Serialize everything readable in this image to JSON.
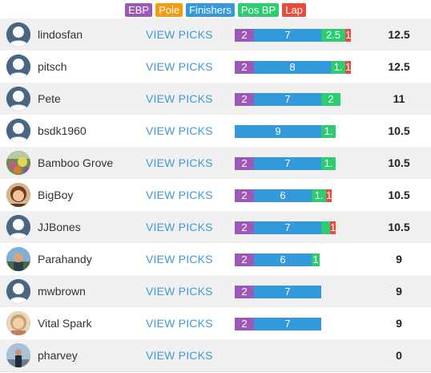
{
  "legend": [
    {
      "label": "EBP",
      "color": "#9b59b6"
    },
    {
      "label": "Pole",
      "color": "#f39c12"
    },
    {
      "label": "Finishers",
      "color": "#3498db"
    },
    {
      "label": "Pos BP",
      "color": "#2ecc71"
    },
    {
      "label": "Lap",
      "color": "#e74c3c"
    }
  ],
  "view_picks_label": "VIEW PICKS",
  "rows": [
    {
      "name": "lindosfan",
      "avatar": "default",
      "total": "12.5",
      "segments": [
        {
          "type": "ebp",
          "label": "2",
          "value": 2
        },
        {
          "type": "fin",
          "label": "7",
          "value": 7
        },
        {
          "type": "posbp",
          "label": "2.5",
          "value": 2.5
        },
        {
          "type": "lap",
          "label": "1",
          "value": 0.6
        }
      ]
    },
    {
      "name": "pitsch",
      "avatar": "default",
      "total": "12.5",
      "segments": [
        {
          "type": "ebp",
          "label": "2",
          "value": 2
        },
        {
          "type": "fin",
          "label": "8",
          "value": 8
        },
        {
          "type": "posbp",
          "label": "1.",
          "value": 1.5
        },
        {
          "type": "lap",
          "label": "1",
          "value": 0.6
        }
      ]
    },
    {
      "name": "Pete",
      "avatar": "default",
      "total": "11",
      "segments": [
        {
          "type": "ebp",
          "label": "2",
          "value": 2
        },
        {
          "type": "fin",
          "label": "7",
          "value": 7
        },
        {
          "type": "posbp",
          "label": "2",
          "value": 2
        }
      ]
    },
    {
      "name": "bsdk1960",
      "avatar": "default",
      "total": "10.5",
      "segments": [
        {
          "type": "fin",
          "label": "9",
          "value": 9
        },
        {
          "type": "posbp",
          "label": "1.",
          "value": 1.5
        }
      ]
    },
    {
      "name": "Bamboo Grove",
      "avatar": "photo-garden",
      "total": "10.5",
      "segments": [
        {
          "type": "ebp",
          "label": "2",
          "value": 2
        },
        {
          "type": "fin",
          "label": "7",
          "value": 7
        },
        {
          "type": "posbp",
          "label": "1.",
          "value": 1.5
        }
      ]
    },
    {
      "name": "BigBoy",
      "avatar": "photo-face",
      "total": "10.5",
      "segments": [
        {
          "type": "ebp",
          "label": "2",
          "value": 2
        },
        {
          "type": "fin",
          "label": "6",
          "value": 6
        },
        {
          "type": "posbp",
          "label": "1.",
          "value": 1.5
        },
        {
          "type": "lap",
          "label": "1",
          "value": 0.6
        }
      ]
    },
    {
      "name": "JJBones",
      "avatar": "default",
      "total": "10.5",
      "segments": [
        {
          "type": "ebp",
          "label": "2",
          "value": 2
        },
        {
          "type": "fin",
          "label": "7",
          "value": 7
        },
        {
          "type": "posbp",
          "label": "",
          "value": 0.9
        },
        {
          "type": "lap",
          "label": "1",
          "value": 0.6
        }
      ]
    },
    {
      "name": "Parahandy",
      "avatar": "photo-man",
      "total": "9",
      "segments": [
        {
          "type": "ebp",
          "label": "2",
          "value": 2
        },
        {
          "type": "fin",
          "label": "6",
          "value": 6
        },
        {
          "type": "posbp",
          "label": "1",
          "value": 0.8
        }
      ]
    },
    {
      "name": "mwbrown",
      "avatar": "default",
      "total": "9",
      "segments": [
        {
          "type": "ebp",
          "label": "2",
          "value": 2
        },
        {
          "type": "fin",
          "label": "7",
          "value": 7
        }
      ]
    },
    {
      "name": "Vital Spark",
      "avatar": "photo-woman",
      "total": "9",
      "segments": [
        {
          "type": "ebp",
          "label": "2",
          "value": 2
        },
        {
          "type": "fin",
          "label": "7",
          "value": 7
        }
      ]
    },
    {
      "name": "pharvey",
      "avatar": "photo-outdoor",
      "total": "0",
      "segments": []
    }
  ]
}
